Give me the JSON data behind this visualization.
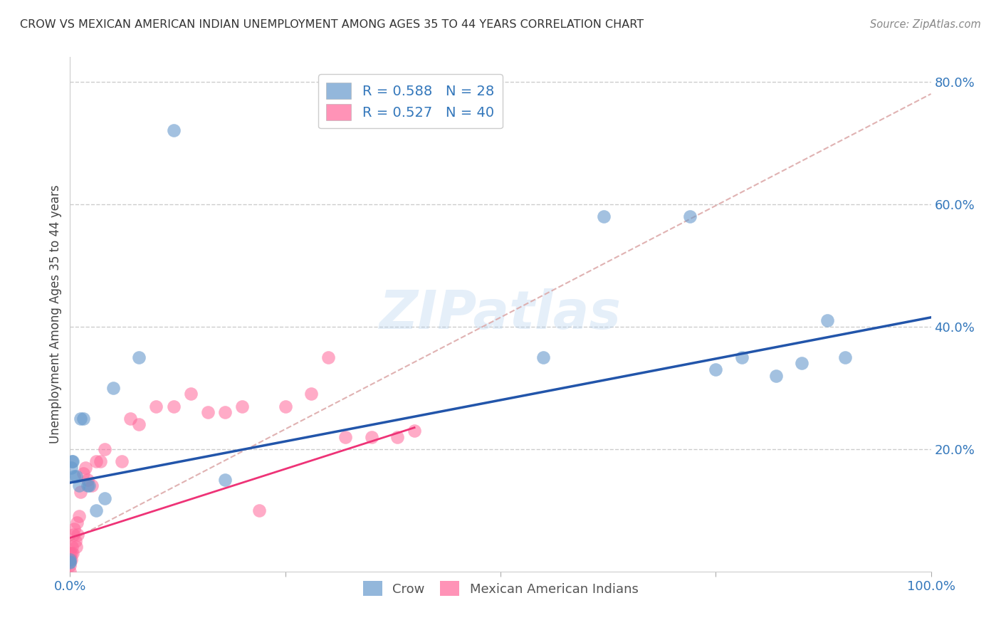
{
  "title": "CROW VS MEXICAN AMERICAN INDIAN UNEMPLOYMENT AMONG AGES 35 TO 44 YEARS CORRELATION CHART",
  "source": "Source: ZipAtlas.com",
  "ylabel": "Unemployment Among Ages 35 to 44 years",
  "crow_R": "R = 0.588",
  "crow_N": "N = 28",
  "mai_R": "R = 0.527",
  "mai_N": "N = 40",
  "crow_color": "#6699CC",
  "mai_color": "#FF6699",
  "axis_color": "#3377BB",
  "crow_x": [
    0.0,
    0.0,
    0.0,
    0.001,
    0.002,
    0.003,
    0.005,
    0.007,
    0.01,
    0.012,
    0.015,
    0.02,
    0.022,
    0.03,
    0.04,
    0.05,
    0.08,
    0.12,
    0.18,
    0.55,
    0.62,
    0.72,
    0.75,
    0.78,
    0.82,
    0.85,
    0.88,
    0.9
  ],
  "crow_y": [
    0.015,
    0.016,
    0.02,
    0.17,
    0.18,
    0.18,
    0.155,
    0.155,
    0.14,
    0.25,
    0.25,
    0.14,
    0.14,
    0.1,
    0.12,
    0.3,
    0.35,
    0.72,
    0.15,
    0.35,
    0.58,
    0.58,
    0.33,
    0.35,
    0.32,
    0.34,
    0.41,
    0.35
  ],
  "mai_x": [
    0.0,
    0.0,
    0.0,
    0.0,
    0.001,
    0.001,
    0.002,
    0.003,
    0.004,
    0.005,
    0.006,
    0.007,
    0.008,
    0.009,
    0.01,
    0.012,
    0.015,
    0.018,
    0.02,
    0.025,
    0.03,
    0.035,
    0.04,
    0.06,
    0.07,
    0.08,
    0.1,
    0.12,
    0.14,
    0.16,
    0.18,
    0.2,
    0.22,
    0.25,
    0.28,
    0.3,
    0.32,
    0.35,
    0.38,
    0.4
  ],
  "mai_y": [
    0.0,
    0.01,
    0.02,
    0.03,
    0.02,
    0.03,
    0.04,
    0.03,
    0.06,
    0.07,
    0.05,
    0.04,
    0.08,
    0.06,
    0.09,
    0.13,
    0.16,
    0.17,
    0.15,
    0.14,
    0.18,
    0.18,
    0.2,
    0.18,
    0.25,
    0.24,
    0.27,
    0.27,
    0.29,
    0.26,
    0.26,
    0.27,
    0.1,
    0.27,
    0.29,
    0.35,
    0.22,
    0.22,
    0.22,
    0.23
  ],
  "crow_line_x": [
    0.0,
    1.0
  ],
  "crow_line_y": [
    0.145,
    0.415
  ],
  "mai_line_x": [
    0.0,
    0.4
  ],
  "mai_line_y": [
    0.055,
    0.235
  ],
  "dashed_line_x": [
    0.0,
    1.0
  ],
  "dashed_line_y": [
    0.05,
    0.78
  ],
  "xlim": [
    0.0,
    1.0
  ],
  "ylim": [
    0.0,
    0.84
  ],
  "yticks": [
    0.2,
    0.4,
    0.6,
    0.8
  ],
  "ytick_labels": [
    "20.0%",
    "40.0%",
    "60.0%",
    "80.0%"
  ],
  "grid_color": "#cccccc",
  "background_color": "#ffffff"
}
